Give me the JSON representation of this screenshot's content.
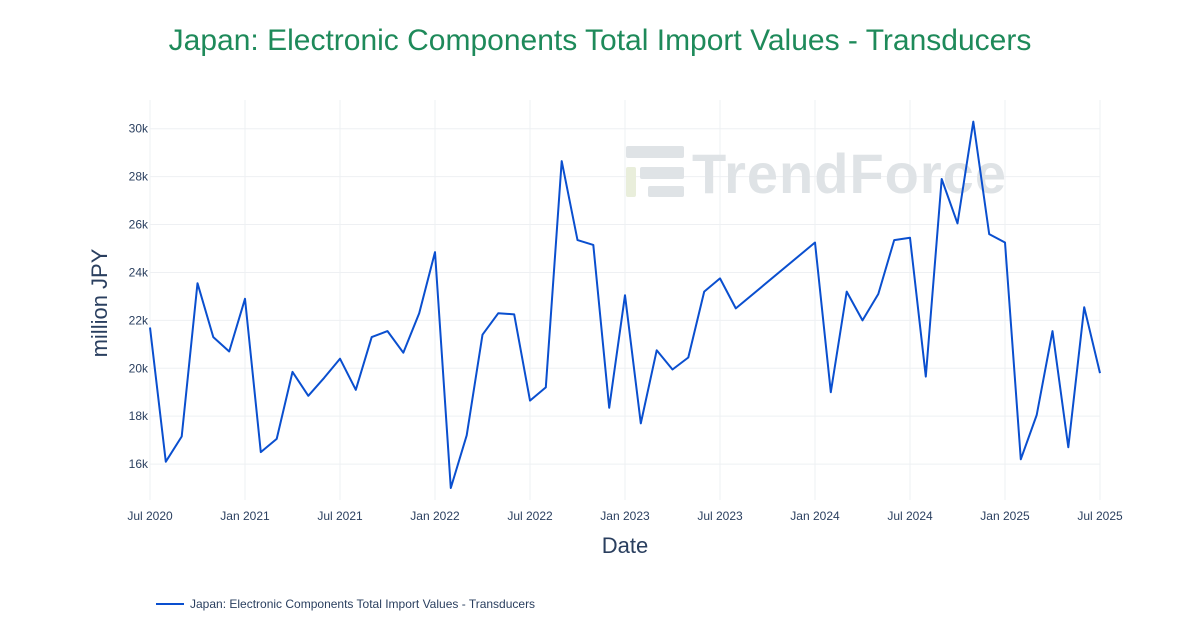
{
  "colors": {
    "title": "#1e8a5a",
    "line": "#0a4fcf",
    "grid": "#eef0f3",
    "text": "#2a3f5f",
    "watermark": "#dfe3e6",
    "watermark_accent": "#e9eedb"
  },
  "watermark": {
    "text": "TrendForce"
  },
  "chart_data": {
    "type": "line",
    "title": "Japan: Electronic Components Total Import Values - Transducers",
    "xlabel": "Date",
    "ylabel": "million JPY",
    "x_ticks": [
      {
        "date": "2020-07-01",
        "label": "Jul 2020"
      },
      {
        "date": "2021-01-01",
        "label": "Jan 2021"
      },
      {
        "date": "2021-07-01",
        "label": "Jul 2021"
      },
      {
        "date": "2022-01-01",
        "label": "Jan 2022"
      },
      {
        "date": "2022-07-01",
        "label": "Jul 2022"
      },
      {
        "date": "2023-01-01",
        "label": "Jan 2023"
      },
      {
        "date": "2023-07-01",
        "label": "Jul 2023"
      },
      {
        "date": "2024-01-01",
        "label": "Jan 2024"
      },
      {
        "date": "2024-07-01",
        "label": "Jul 2024"
      },
      {
        "date": "2025-01-01",
        "label": "Jan 2025"
      },
      {
        "date": "2025-07-01",
        "label": "Jul 2025"
      }
    ],
    "y_ticks": [
      {
        "value": 16000,
        "label": "16k"
      },
      {
        "value": 18000,
        "label": "18k"
      },
      {
        "value": 20000,
        "label": "20k"
      },
      {
        "value": 22000,
        "label": "22k"
      },
      {
        "value": 24000,
        "label": "24k"
      },
      {
        "value": 26000,
        "label": "26k"
      },
      {
        "value": 28000,
        "label": "28k"
      },
      {
        "value": 30000,
        "label": "30k"
      }
    ],
    "xlim": [
      "2020-07-01",
      "2025-07-01"
    ],
    "ylim": [
      14500,
      31200
    ],
    "grid": true,
    "legend_position": "bottom-left",
    "series": [
      {
        "name": "Japan: Electronic Components Total Import Values - Transducers",
        "x": [
          "2020-07",
          "2020-08",
          "2020-09",
          "2020-10",
          "2020-11",
          "2020-12",
          "2021-01",
          "2021-02",
          "2021-03",
          "2021-04",
          "2021-05",
          "2021-06",
          "2021-07",
          "2021-08",
          "2021-09",
          "2021-10",
          "2021-11",
          "2021-12",
          "2022-01",
          "2022-02",
          "2022-03",
          "2022-04",
          "2022-05",
          "2022-06",
          "2022-07",
          "2022-08",
          "2022-09",
          "2022-10",
          "2022-11",
          "2022-12",
          "2023-01",
          "2023-02",
          "2023-03",
          "2023-04",
          "2023-05",
          "2023-06",
          "2023-07",
          "2023-08",
          "2024-01",
          "2024-02",
          "2024-03",
          "2024-04",
          "2024-05",
          "2024-06",
          "2024-07",
          "2024-08",
          "2024-09",
          "2024-10",
          "2024-11",
          "2024-12",
          "2025-01",
          "2025-02",
          "2025-03",
          "2025-04",
          "2025-05",
          "2025-06",
          "2025-07"
        ],
        "y": [
          21700,
          16100,
          17150,
          23550,
          21300,
          20700,
          22900,
          16500,
          17050,
          19850,
          18850,
          19600,
          20400,
          19100,
          21300,
          21550,
          20650,
          22300,
          24850,
          15000,
          17200,
          21400,
          22300,
          22250,
          18650,
          19200,
          28650,
          25350,
          25150,
          18350,
          23050,
          17700,
          20750,
          19950,
          20450,
          23200,
          23750,
          22500,
          25250,
          19000,
          23200,
          22000,
          23100,
          25350,
          25450,
          19650,
          27900,
          26050,
          30300,
          25600,
          25250,
          16200,
          18050,
          21550,
          16700,
          22550,
          19800
        ]
      }
    ]
  }
}
